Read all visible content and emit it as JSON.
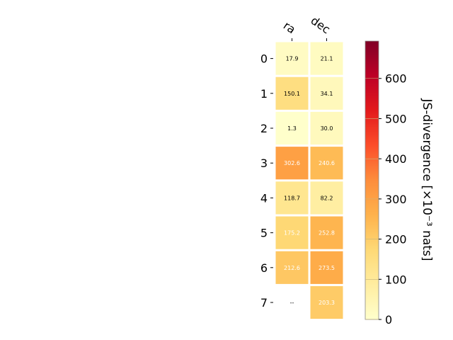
{
  "chart_data": {
    "type": "heatmap",
    "columns": [
      "ra",
      "dec"
    ],
    "rows": [
      "0",
      "1",
      "2",
      "3",
      "4",
      "5",
      "6",
      "7"
    ],
    "values": [
      [
        17.9,
        21.1
      ],
      [
        150.1,
        34.1
      ],
      [
        1.3,
        30.0
      ],
      [
        302.6,
        240.6
      ],
      [
        118.7,
        82.2
      ],
      [
        175.2,
        252.8
      ],
      [
        212.6,
        273.5
      ],
      [
        null,
        203.3
      ]
    ],
    "cell_labels": [
      [
        "17.9",
        "21.1"
      ],
      [
        "150.1",
        "34.1"
      ],
      [
        "1.3",
        "30.0"
      ],
      [
        "302.6",
        "240.6"
      ],
      [
        "118.7",
        "82.2"
      ],
      [
        "175.2",
        "252.8"
      ],
      [
        "212.6",
        "273.5"
      ],
      [
        "--",
        "203.3"
      ]
    ],
    "colorbar": {
      "label": "JS-divergence [×10⁻³ nats]",
      "range": [
        0,
        693
      ],
      "ticks": [
        0,
        100,
        200,
        300,
        400,
        500,
        600
      ],
      "colormap": "YlOrRd"
    }
  }
}
